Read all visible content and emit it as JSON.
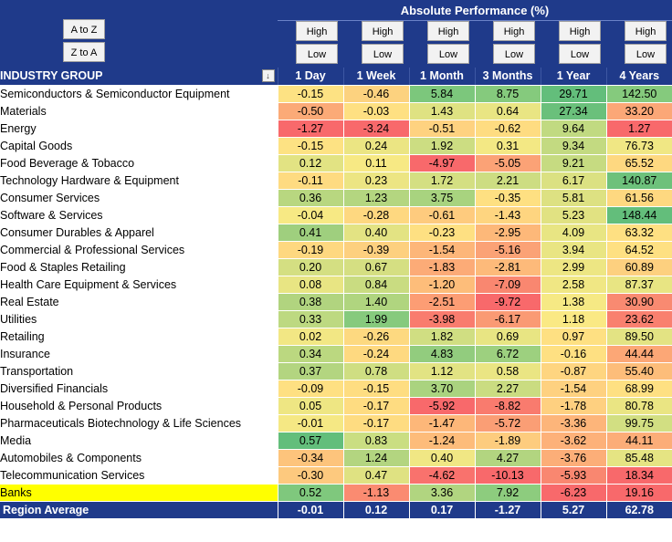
{
  "header": {
    "title": "Absolute Performance (%)",
    "sort_az": "A to Z",
    "sort_za": "Z to A",
    "high_label": "High",
    "low_label": "Low"
  },
  "columns": {
    "group": "INDUSTRY GROUP",
    "filter_glyph": "↓",
    "periods": [
      "1 Day",
      "1 Week",
      "1 Month",
      "3 Months",
      "1 Year",
      "4 Years"
    ]
  },
  "rows": [
    {
      "name": "Semiconductors & Semiconductor Equipment",
      "values": [
        "-0.15",
        "-0.46",
        "5.84",
        "8.75",
        "29.71",
        "142.50"
      ],
      "colors": [
        "#fde283",
        "#fcd27f",
        "#7cc77c",
        "#85ca7d",
        "#63be7b",
        "#85ca7d"
      ]
    },
    {
      "name": "Materials",
      "values": [
        "-0.50",
        "-0.03",
        "1.43",
        "0.64",
        "27.34",
        "33.20"
      ],
      "colors": [
        "#fbaa77",
        "#fee082",
        "#dfe282",
        "#e9e583",
        "#6ac07b",
        "#fba777"
      ]
    },
    {
      "name": "Energy",
      "values": [
        "-1.27",
        "-3.24",
        "-0.51",
        "-0.62",
        "9.64",
        "1.27"
      ],
      "colors": [
        "#f8696b",
        "#f8696b",
        "#fed280",
        "#fedc81",
        "#c1da81",
        "#f8696b"
      ]
    },
    {
      "name": "Capital Goods",
      "values": [
        "-0.15",
        "0.24",
        "1.92",
        "0.31",
        "9.34",
        "76.73"
      ],
      "colors": [
        "#fde283",
        "#ebe583",
        "#ccdd82",
        "#f3e884",
        "#c3da81",
        "#f0e784"
      ]
    },
    {
      "name": "Food Beverage & Tobacco",
      "values": [
        "0.12",
        "0.11",
        "-4.97",
        "-5.05",
        "9.21",
        "65.52"
      ],
      "colors": [
        "#e2e383",
        "#f7e984",
        "#f8696b",
        "#fba276",
        "#c6db81",
        "#fed880"
      ]
    },
    {
      "name": "Technology Hardware & Equipment",
      "values": [
        "-0.11",
        "0.23",
        "1.72",
        "2.21",
        "6.17",
        "140.87"
      ],
      "colors": [
        "#fedb81",
        "#ece583",
        "#d4df82",
        "#cddd82",
        "#dbe182",
        "#6dc17b"
      ]
    },
    {
      "name": "Consumer Services",
      "values": [
        "0.36",
        "1.23",
        "3.75",
        "-0.35",
        "5.81",
        "61.56"
      ],
      "colors": [
        "#b8d780",
        "#b4d680",
        "#a8d37f",
        "#fee082",
        "#dde182",
        "#fed880"
      ]
    },
    {
      "name": "Software & Services",
      "values": [
        "-0.04",
        "-0.28",
        "-0.61",
        "-1.43",
        "5.23",
        "148.44"
      ],
      "colors": [
        "#f7e984",
        "#fed880",
        "#fecb7e",
        "#fed580",
        "#e1e282",
        "#63be7b"
      ]
    },
    {
      "name": "Consumer Durables & Apparel",
      "values": [
        "0.41",
        "0.40",
        "-0.23",
        "-2.95",
        "4.09",
        "63.32"
      ],
      "colors": [
        "#9fcf7e",
        "#e3e383",
        "#fee082",
        "#fdb879",
        "#e8e583",
        "#fee082"
      ]
    },
    {
      "name": "Commercial & Professional Services",
      "values": [
        "-0.19",
        "-0.39",
        "-1.54",
        "-5.16",
        "3.94",
        "64.52"
      ],
      "colors": [
        "#fed880",
        "#fdd07f",
        "#fdb679",
        "#fba276",
        "#e9e583",
        "#fee082"
      ]
    },
    {
      "name": "Food & Staples Retailing",
      "values": [
        "0.20",
        "0.67",
        "-1.83",
        "-2.81",
        "2.99",
        "60.89"
      ],
      "colors": [
        "#d4df82",
        "#d5df82",
        "#fcab77",
        "#fdba7a",
        "#ede683",
        "#fdd07f"
      ]
    },
    {
      "name": "Health Care Equipment & Services",
      "values": [
        "0.08",
        "0.84",
        "-1.20",
        "-7.09",
        "2.58",
        "87.37"
      ],
      "colors": [
        "#e8e583",
        "#c9dc81",
        "#fdbd7a",
        "#f98770",
        "#f0e784",
        "#e8e583"
      ]
    },
    {
      "name": "Real Estate",
      "values": [
        "0.38",
        "1.40",
        "-2.51",
        "-9.72",
        "1.38",
        "30.90"
      ],
      "colors": [
        "#b1d47f",
        "#b0d57f",
        "#fc9d74",
        "#f8696b",
        "#f6e984",
        "#f98a71"
      ]
    },
    {
      "name": "Utilities",
      "values": [
        "0.33",
        "1.99",
        "-3.98",
        "-6.17",
        "1.18",
        "23.62"
      ],
      "colors": [
        "#bdd981",
        "#86ca7d",
        "#f97c6e",
        "#fa9a74",
        "#fae984",
        "#f9806f"
      ]
    },
    {
      "name": "Retailing",
      "values": [
        "0.02",
        "-0.26",
        "1.82",
        "0.69",
        "0.97",
        "89.50"
      ],
      "colors": [
        "#f2e784",
        "#fdd980",
        "#d0de82",
        "#e8e583",
        "#fee082",
        "#e3e383"
      ]
    },
    {
      "name": "Insurance",
      "values": [
        "0.34",
        "-0.24",
        "4.83",
        "6.72",
        "-0.16",
        "44.44"
      ],
      "colors": [
        "#bbd880",
        "#fed980",
        "#92cc7e",
        "#9dd07f",
        "#fee082",
        "#fca776"
      ]
    },
    {
      "name": "Transportation",
      "values": [
        "0.37",
        "0.78",
        "1.12",
        "0.58",
        "-0.87",
        "55.40"
      ],
      "colors": [
        "#b3d580",
        "#cfde82",
        "#e2e383",
        "#eae583",
        "#fed580",
        "#fdbd7a"
      ]
    },
    {
      "name": "Diversified Financials",
      "values": [
        "-0.09",
        "-0.15",
        "3.70",
        "2.27",
        "-1.54",
        "68.99"
      ],
      "colors": [
        "#fee082",
        "#fedd81",
        "#aad37f",
        "#cadc81",
        "#fed180",
        "#fee082"
      ]
    },
    {
      "name": "Household & Personal Products",
      "values": [
        "0.05",
        "-0.17",
        "-5.92",
        "-8.82",
        "-1.78",
        "80.78"
      ],
      "colors": [
        "#eee683",
        "#fedc81",
        "#f8696b",
        "#f97b6e",
        "#fed080",
        "#eae583"
      ]
    },
    {
      "name": "Pharmaceuticals Biotechnology & Life Sciences",
      "values": [
        "-0.01",
        "-0.17",
        "-1.47",
        "-5.72",
        "-3.36",
        "99.75"
      ],
      "colors": [
        "#f5e884",
        "#fedc81",
        "#fdb779",
        "#fa9e75",
        "#fdb57a",
        "#d2df82"
      ]
    },
    {
      "name": "Media",
      "values": [
        "0.57",
        "0.83",
        "-1.24",
        "-1.89",
        "-3.62",
        "44.11"
      ],
      "colors": [
        "#63be7b",
        "#cade82",
        "#fdbc7a",
        "#fdcc7e",
        "#fdb179",
        "#fcad78"
      ]
    },
    {
      "name": "Automobiles & Components",
      "values": [
        "-0.34",
        "1.24",
        "0.40",
        "4.27",
        "-3.76",
        "85.48"
      ],
      "colors": [
        "#fdc47c",
        "#b3d580",
        "#f0e784",
        "#b2d580",
        "#fcae78",
        "#e5e483"
      ]
    },
    {
      "name": "Telecommunication Services",
      "values": [
        "-0.30",
        "0.47",
        "-4.62",
        "-10.13",
        "-5.93",
        "18.34"
      ],
      "colors": [
        "#fdc97e",
        "#dfe282",
        "#f9726d",
        "#f8696b",
        "#f98770",
        "#f8696b"
      ]
    },
    {
      "name": "Banks",
      "values": [
        "0.52",
        "-1.13",
        "3.36",
        "7.92",
        "-6.23",
        "19.16"
      ],
      "colors": [
        "#7fc87d",
        "#fa8b71",
        "#b1d580",
        "#8dcc7e",
        "#f8696b",
        "#f8696b"
      ]
    }
  ],
  "average": {
    "name": "Region Average",
    "values": [
      "-0.01",
      "0.12",
      "0.17",
      "-1.27",
      "5.27",
      "62.78"
    ]
  }
}
